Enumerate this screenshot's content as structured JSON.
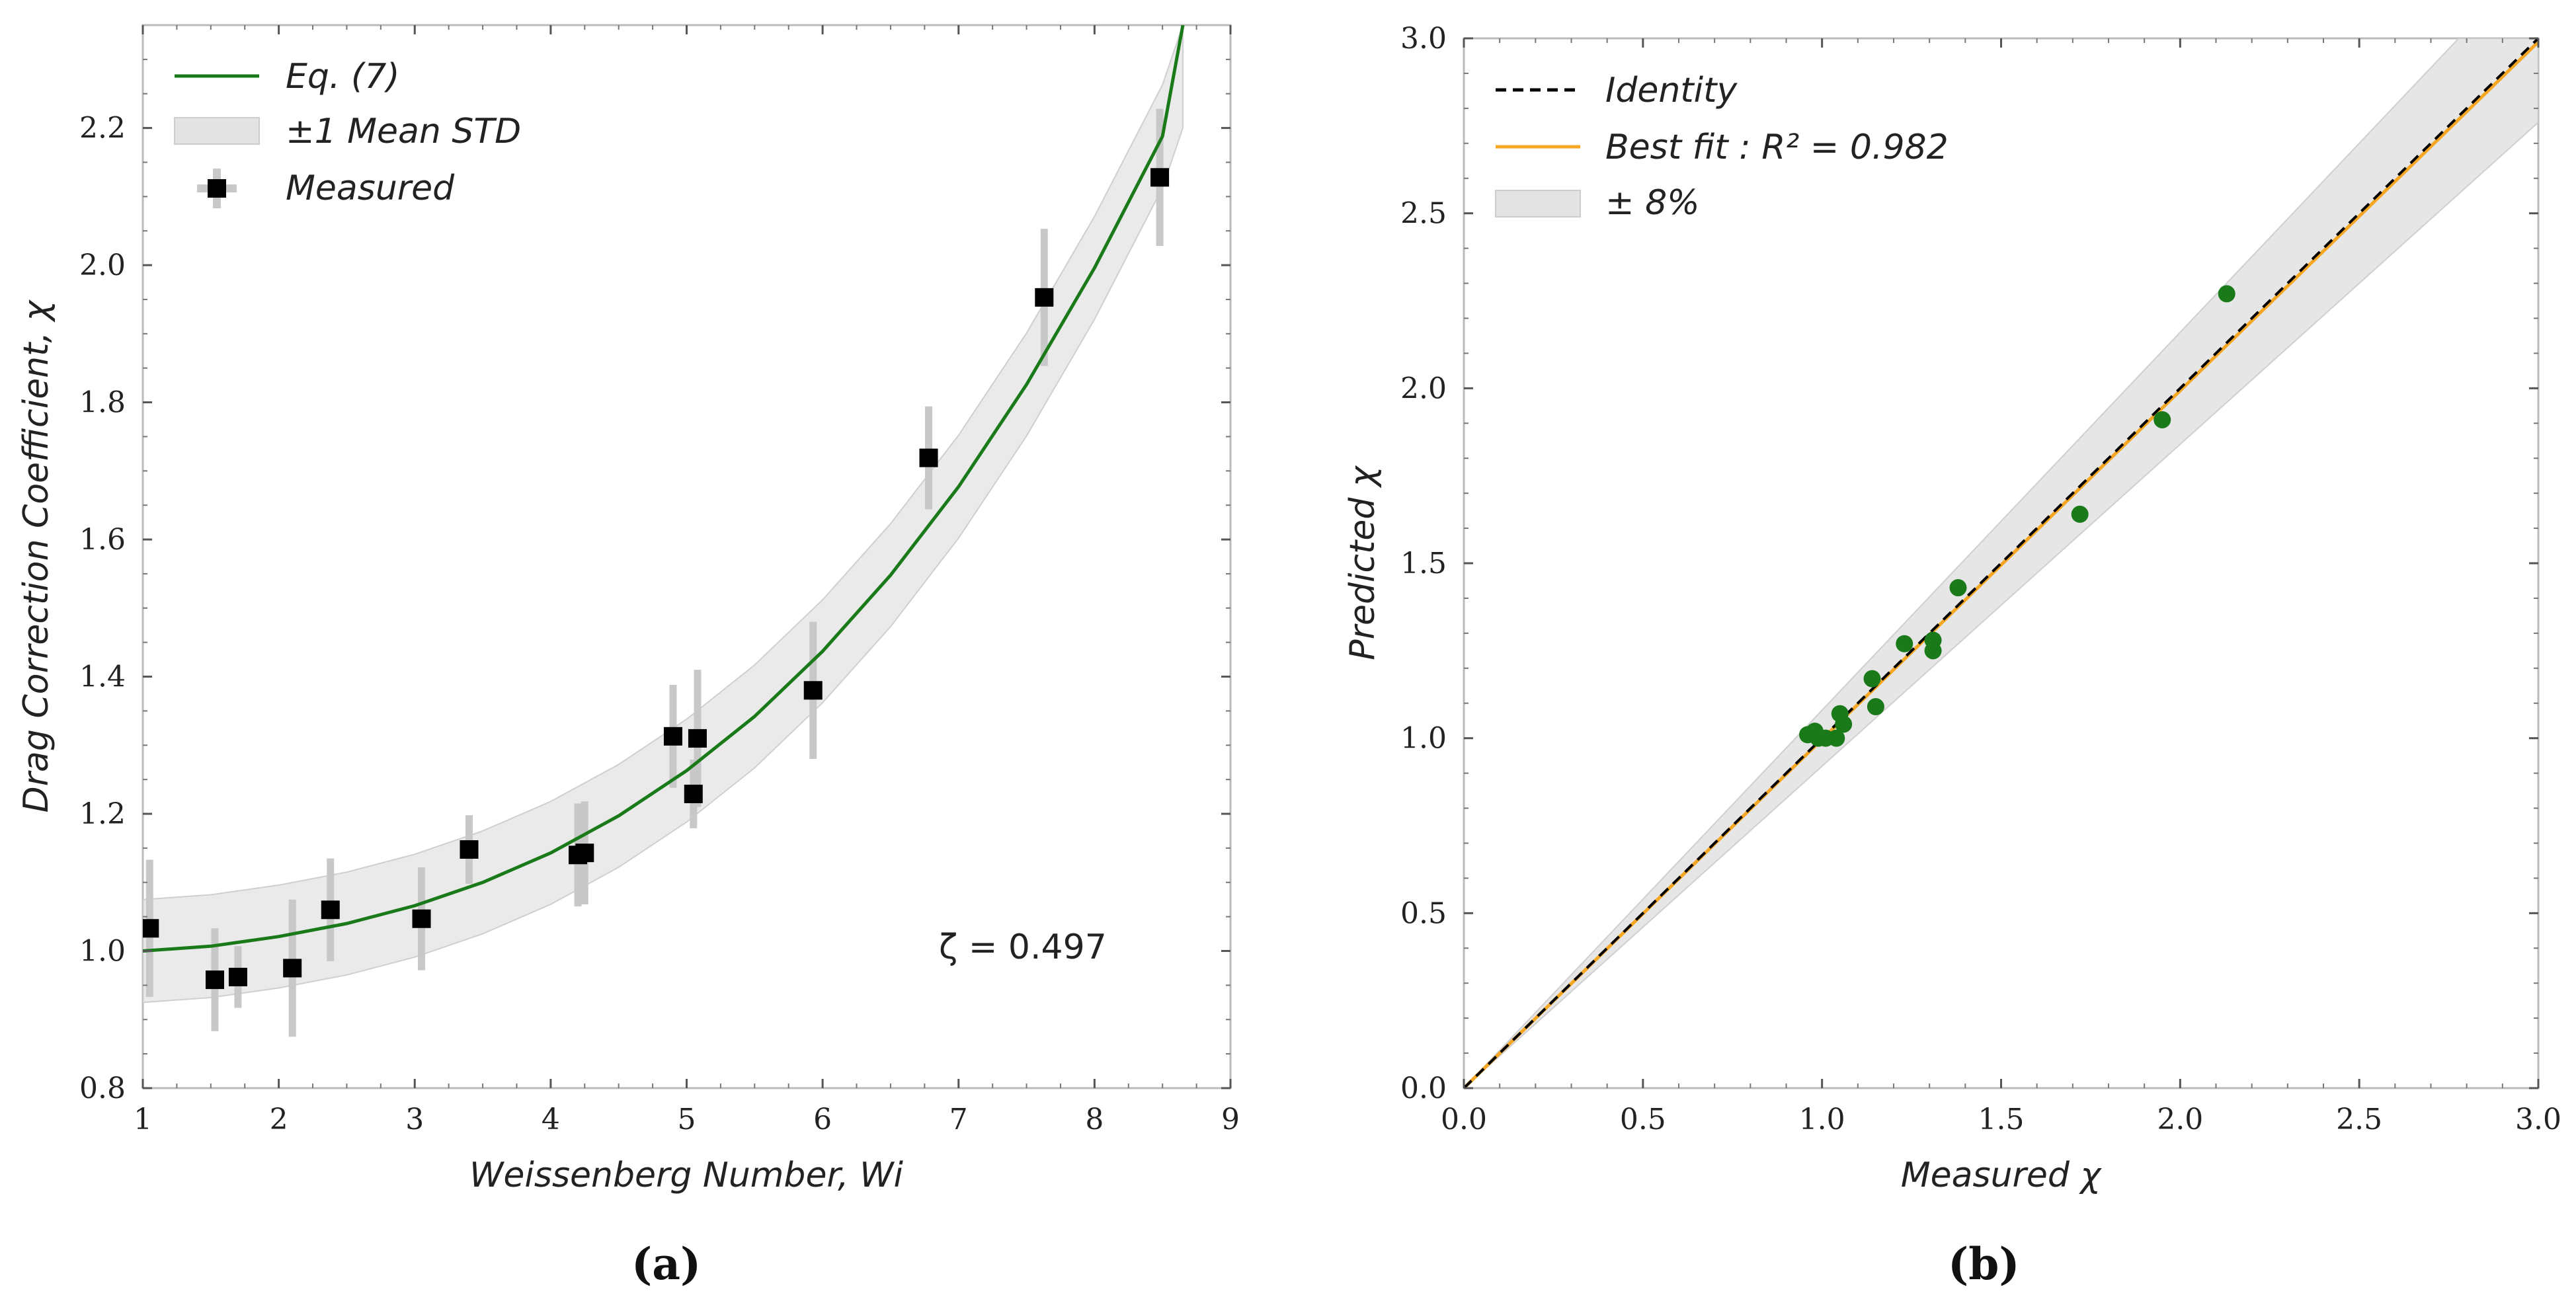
{
  "chart_data": [
    {
      "type": "scatter",
      "panel_label": "(a)",
      "xlabel": "Weissenberg Number,  Wi",
      "ylabel": "Drag Correction Coefficient, χ",
      "xlim": [
        1,
        9
      ],
      "ylim": [
        0.8,
        2.35
      ],
      "xticks": [
        "1",
        "2",
        "3",
        "4",
        "5",
        "6",
        "7",
        "8",
        "9"
      ],
      "yticks": [
        "0.8",
        "1.0",
        "1.2",
        "1.4",
        "1.6",
        "1.8",
        "2.0",
        "2.2"
      ],
      "annotation": "ζ = 0.497",
      "legend_position": "top-left",
      "legend": [
        "Eq. (7)",
        "±1 Mean STD",
        "Measured"
      ],
      "colors": {
        "model": "#1a7a1a",
        "band": "#d9d9d9",
        "measured": "#000000",
        "errorbar": "#c8c8c8"
      },
      "series": [
        {
          "name": "Eq. (7)",
          "kind": "line",
          "x": [
            1.0,
            1.5,
            2.0,
            2.5,
            3.0,
            3.5,
            4.0,
            4.5,
            5.0,
            5.5,
            6.0,
            6.5,
            7.0,
            7.5,
            8.0,
            8.5,
            8.65
          ],
          "y": [
            1.0,
            1.007,
            1.021,
            1.04,
            1.066,
            1.1,
            1.143,
            1.197,
            1.263,
            1.342,
            1.437,
            1.548,
            1.677,
            1.826,
            1.996,
            2.188,
            2.35
          ]
        },
        {
          "name": "±1 Mean STD",
          "kind": "band",
          "x": [
            1.0,
            1.5,
            2.0,
            2.5,
            3.0,
            3.5,
            4.0,
            4.5,
            5.0,
            5.5,
            6.0,
            6.5,
            7.0,
            7.5,
            8.0,
            8.5,
            8.65
          ],
          "lower": [
            0.925,
            0.932,
            0.946,
            0.965,
            0.991,
            1.025,
            1.068,
            1.122,
            1.188,
            1.267,
            1.362,
            1.473,
            1.602,
            1.751,
            1.921,
            2.113,
            2.2
          ],
          "upper": [
            1.075,
            1.082,
            1.096,
            1.115,
            1.141,
            1.175,
            1.218,
            1.272,
            1.338,
            1.417,
            1.512,
            1.623,
            1.752,
            1.901,
            2.071,
            2.263,
            2.35
          ]
        },
        {
          "name": "Measured",
          "kind": "errorbar",
          "x": [
            1.05,
            1.53,
            1.7,
            2.1,
            2.38,
            3.05,
            3.4,
            4.2,
            4.25,
            4.9,
            5.05,
            5.08,
            5.93,
            6.78,
            7.63,
            8.48
          ],
          "y": [
            1.033,
            0.958,
            0.962,
            0.975,
            1.06,
            1.047,
            1.148,
            1.14,
            1.143,
            1.313,
            1.229,
            1.31,
            1.38,
            1.719,
            1.953,
            2.128
          ],
          "err": [
            0.1,
            0.075,
            0.045,
            0.1,
            0.075,
            0.075,
            0.05,
            0.075,
            0.075,
            0.075,
            0.05,
            0.1,
            0.1,
            0.075,
            0.1,
            0.1
          ]
        }
      ]
    },
    {
      "type": "scatter",
      "panel_label": "(b)",
      "xlabel": "Measured χ",
      "ylabel": "Predicted χ",
      "xlim": [
        0.0,
        3.0
      ],
      "ylim": [
        0.0,
        3.0
      ],
      "xticks": [
        "0.0",
        "0.5",
        "1.0",
        "1.5",
        "2.0",
        "2.5",
        "3.0"
      ],
      "yticks": [
        "0.0",
        "0.5",
        "1.0",
        "1.5",
        "2.0",
        "2.5",
        "3.0"
      ],
      "legend_position": "top-left",
      "legend": [
        "Identity",
        "Best fit :  R² = 0.982",
        "± 8%"
      ],
      "colors": {
        "identity": "#000000",
        "fit": "#f5a623",
        "band": "#dcdcdc",
        "points": "#1a7a1a"
      },
      "series": [
        {
          "name": "Identity",
          "kind": "line",
          "x": [
            0.0,
            3.0
          ],
          "y": [
            0.0,
            3.0
          ]
        },
        {
          "name": "Best fit",
          "kind": "line",
          "x": [
            0.0,
            3.0
          ],
          "y": [
            0.0,
            2.99
          ]
        },
        {
          "name": "± 8%",
          "kind": "band",
          "fraction": 0.08
        },
        {
          "name": "",
          "kind": "points",
          "x": [
            0.96,
            0.98,
            0.99,
            1.01,
            1.04,
            1.05,
            1.06,
            1.14,
            1.15,
            1.23,
            1.31,
            1.31,
            1.38,
            1.72,
            1.95,
            2.13
          ],
          "y": [
            1.01,
            1.02,
            1.0,
            1.0,
            1.0,
            1.07,
            1.04,
            1.17,
            1.09,
            1.27,
            1.28,
            1.25,
            1.43,
            1.64,
            1.91,
            2.27
          ]
        }
      ]
    }
  ]
}
